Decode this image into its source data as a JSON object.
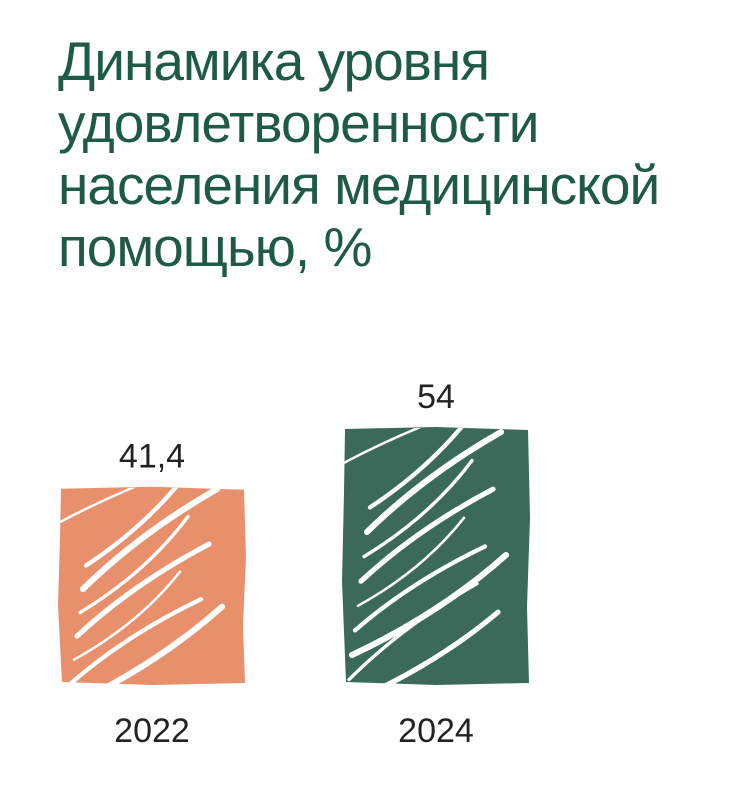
{
  "chart_data": {
    "type": "bar",
    "title": "Динамика уровня удовлетворенности населения медицинской помощью, %",
    "categories": [
      "2022",
      "2024"
    ],
    "values": [
      41.4,
      54
    ],
    "value_labels": [
      "41,4",
      "54"
    ],
    "xlabel": "",
    "ylabel": "",
    "ylim": [
      0,
      54
    ],
    "grid": false,
    "legend": "none",
    "colors": [
      "#e8906c",
      "#3b6a5b"
    ],
    "title_color": "#1f5a45",
    "text_color": "#222222",
    "hatch": "white diagonal scribble strokes"
  }
}
